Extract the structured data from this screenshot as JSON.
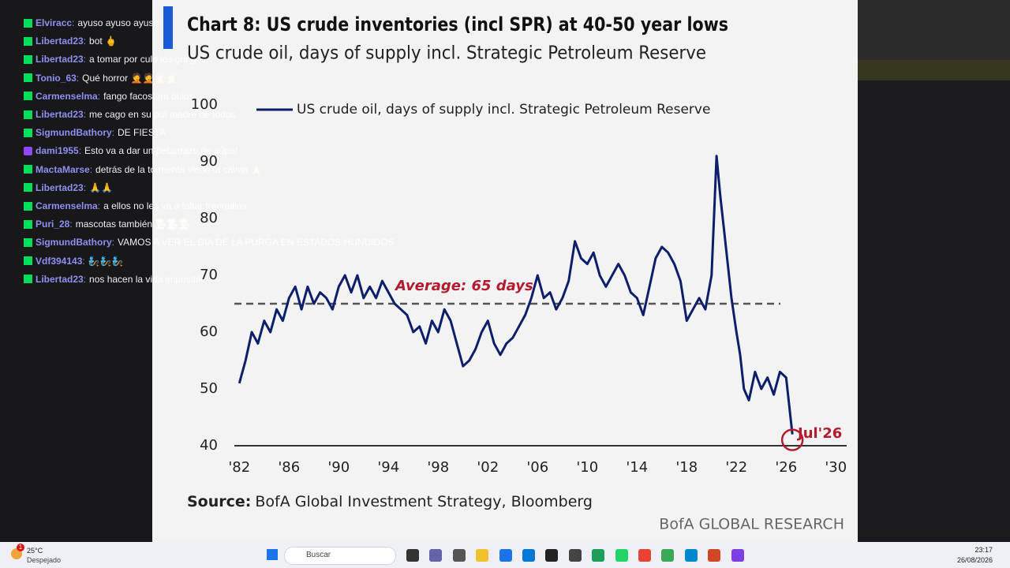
{
  "chat": {
    "messages": [
      {
        "user": "Elviracc",
        "text": "ayuso ayuso ayuso"
      },
      {
        "user": "Libertad23",
        "text": "bot 🖕"
      },
      {
        "user": "Libertad23",
        "text": "a tomar por culo los gringos"
      },
      {
        "user": "Tonio_63",
        "text": "Qué horror 🤦🤦🤦🤦"
      },
      {
        "user": "Carmenselma",
        "text": "fango facostera bulos"
      },
      {
        "user": "Libertad23",
        "text": "me cago en su put madre de todos"
      },
      {
        "user": "SigmundBathory",
        "text": "DE FIESTA"
      },
      {
        "user": "dami1955",
        "text": "Esto va a dar un petardazo de aúpa!"
      },
      {
        "user": "MactaMarse",
        "text": "detrás de la tormenta viene la calma 🙏"
      },
      {
        "user": "Libertad23",
        "text": "🙏🙏"
      },
      {
        "user": "Carmenselma",
        "text": "a ellos no les va a faltar tranquilos"
      },
      {
        "user": "Puri_28",
        "text": "mascotas también 🧑‍🍳🧑‍🍳🧑‍🍳"
      },
      {
        "user": "SigmundBathory",
        "text": "VAMOS A VER EL DIA DE LA PURGA EN ESTADOS HUNDIDOS"
      },
      {
        "user": "Vdf394143",
        "text": "🧞🧞🧞"
      },
      {
        "user": "Libertad23",
        "text": "nos hacen la vida imposible"
      }
    ]
  },
  "chart_data": {
    "type": "line",
    "title": "Chart 8: US crude inventories (incl SPR) at 40-50 year lows",
    "subtitle": "US crude oil, days of supply incl. Strategic Petroleum Reserve",
    "x": [
      1982,
      1982.5,
      1983,
      1983.5,
      1984,
      1984.5,
      1985,
      1985.5,
      1986,
      1986.5,
      1987,
      1987.5,
      1988,
      1988.5,
      1989,
      1989.5,
      1990,
      1990.5,
      1991,
      1991.5,
      1992,
      1992.5,
      1993,
      1993.5,
      1994,
      1994.5,
      1995,
      1995.5,
      1996,
      1996.5,
      1997,
      1997.5,
      1998,
      1998.5,
      1999,
      1999.5,
      2000,
      2000.5,
      2001,
      2001.5,
      2002,
      2002.5,
      2003,
      2003.5,
      2004,
      2004.5,
      2005,
      2005.5,
      2006,
      2006.5,
      2007,
      2007.5,
      2008,
      2008.5,
      2009,
      2009.5,
      2010,
      2010.5,
      2011,
      2011.5,
      2012,
      2012.5,
      2013,
      2013.5,
      2014,
      2014.5,
      2015,
      2015.5,
      2016,
      2016.5,
      2017,
      2017.5,
      2018,
      2018.5,
      2019,
      2019.5,
      2020,
      2020.4,
      2020.7,
      2021,
      2021.3,
      2021.6,
      2022,
      2022.3,
      2022.6,
      2023,
      2023.5,
      2024,
      2024.5,
      2025,
      2025.5,
      2026,
      2026.5
    ],
    "series": [
      {
        "name": "US crude oil, days of supply incl. Strategic Petroleum Reserve",
        "color": "#0d1f6b",
        "values": [
          51,
          55,
          60,
          58,
          62,
          60,
          64,
          62,
          66,
          68,
          64,
          68,
          65,
          67,
          66,
          64,
          68,
          70,
          67,
          70,
          66,
          68,
          66,
          69,
          67,
          65,
          64,
          63,
          60,
          61,
          58,
          62,
          60,
          64,
          62,
          58,
          54,
          55,
          57,
          60,
          62,
          58,
          56,
          58,
          59,
          61,
          63,
          66,
          70,
          66,
          67,
          64,
          66,
          69,
          76,
          73,
          72,
          74,
          70,
          68,
          70,
          72,
          70,
          67,
          66,
          63,
          68,
          73,
          75,
          74,
          72,
          69,
          62,
          64,
          66,
          64,
          70,
          91,
          84,
          78,
          72,
          66,
          60,
          56,
          50,
          48,
          53,
          50,
          52,
          49,
          53,
          52,
          42
        ]
      }
    ],
    "xlim": [
      1981.6,
      2032
    ],
    "ylim": [
      40,
      100
    ],
    "xticks": [
      {
        "value": 1982,
        "label": "'82"
      },
      {
        "value": 1986,
        "label": "'86"
      },
      {
        "value": 1990,
        "label": "'90"
      },
      {
        "value": 1994,
        "label": "'94"
      },
      {
        "value": 1998,
        "label": "'98"
      },
      {
        "value": 2002,
        "label": "'02"
      },
      {
        "value": 2006,
        "label": "'06"
      },
      {
        "value": 2010,
        "label": "'10"
      },
      {
        "value": 2014,
        "label": "'14"
      },
      {
        "value": 2018,
        "label": "'18"
      },
      {
        "value": 2022,
        "label": "'22"
      },
      {
        "value": 2026,
        "label": "'26"
      },
      {
        "value": 2030,
        "label": "'30"
      }
    ],
    "yticks": [
      40,
      50,
      60,
      70,
      80,
      90,
      100
    ],
    "average": {
      "label": "Average: 65 days",
      "value": 65,
      "color": "#555555",
      "label_color": "#b31b2e"
    },
    "endpoint": {
      "label": "Jul'26",
      "color": "#b31b2e"
    },
    "source": {
      "prefix": "Source:",
      "text": "BofA Global Investment Strategy, Bloomberg"
    },
    "brand": "BofA GLOBAL RESEARCH"
  },
  "taskbar": {
    "weather_badge": "1",
    "temperature": "25°C",
    "weather": "Despejado",
    "search": "Buscar",
    "time": "23:17",
    "date": "26/08/2026"
  }
}
